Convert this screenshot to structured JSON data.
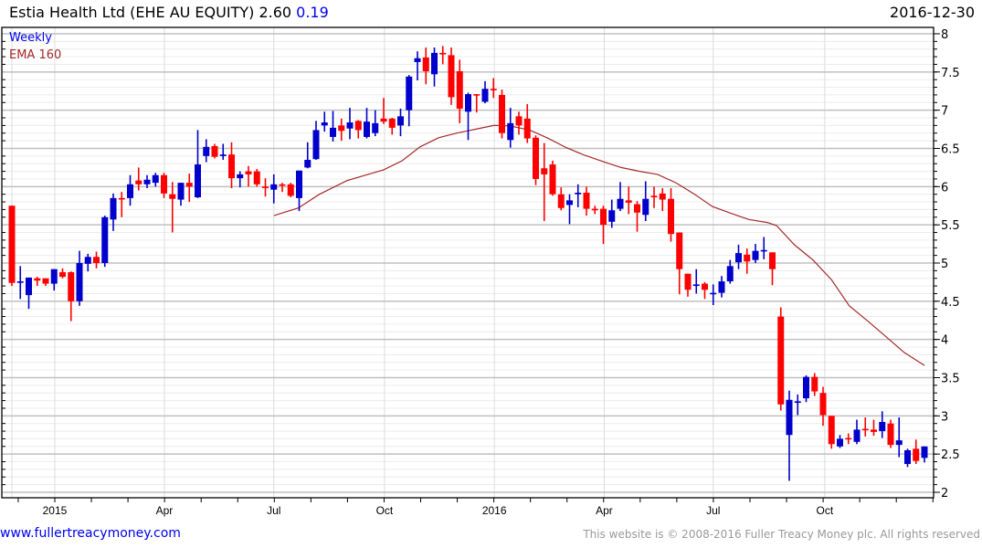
{
  "header": {
    "title": "Estia Health Ltd (EHE AU EQUITY) 2.60",
    "change": "0.19",
    "date": "2016-12-30"
  },
  "footer": {
    "site": "www.fullertreacymoney.com",
    "copyright": "This website is © 2008-2016 Fuller Treacy Money plc. All rights reserved"
  },
  "colors": {
    "up": "#0000cc",
    "down": "#ff0000",
    "ema": "#a52a2a",
    "legend_weekly": "#0000ee"
  },
  "chart_data": {
    "type": "candlestick",
    "title": "Estia Health Ltd (EHE AU EQUITY)",
    "legend": [
      "Weekly",
      "EMA 160"
    ],
    "legend_placement": "top-left",
    "ylim": [
      2,
      8
    ],
    "y_ticks": [
      "2",
      "2.5",
      "3",
      "3.5",
      "4",
      "4.5",
      "5",
      "5.5",
      "6",
      "6.5",
      "7",
      "7.5",
      "8"
    ],
    "x_labels": [
      {
        "label": "2015",
        "week": 6.08
      },
      {
        "label": "Apr",
        "week": 19.05
      },
      {
        "label": "Jul",
        "week": 32.0
      },
      {
        "label": "Oct",
        "week": 45.1
      },
      {
        "label": "2016",
        "week": 58.1
      },
      {
        "label": "Apr",
        "week": 71.1
      },
      {
        "label": "Jul",
        "week": 84.0
      },
      {
        "label": "Oct",
        "week": 97.2
      }
    ],
    "ohlc": [
      [
        5.75,
        5.75,
        4.7,
        4.74
      ],
      [
        4.75,
        4.96,
        4.53,
        4.76
      ],
      [
        4.58,
        4.81,
        4.4,
        4.81
      ],
      [
        4.8,
        4.82,
        4.7,
        4.77
      ],
      [
        4.8,
        4.8,
        4.7,
        4.73
      ],
      [
        4.73,
        4.92,
        4.64,
        4.92
      ],
      [
        4.88,
        4.93,
        4.8,
        4.82
      ],
      [
        4.88,
        4.89,
        4.24,
        4.5
      ],
      [
        4.5,
        5.16,
        4.44,
        5.0
      ],
      [
        4.99,
        5.12,
        4.89,
        5.08
      ],
      [
        5.08,
        5.15,
        4.93,
        5.0
      ],
      [
        5.0,
        5.62,
        4.95,
        5.6
      ],
      [
        5.57,
        5.91,
        5.42,
        5.85
      ],
      [
        5.85,
        5.93,
        5.6,
        5.84
      ],
      [
        5.85,
        6.15,
        5.75,
        6.03
      ],
      [
        6.08,
        6.25,
        5.95,
        6.03
      ],
      [
        6.03,
        6.15,
        5.98,
        6.09
      ],
      [
        6.05,
        6.18,
        6.0,
        6.15
      ],
      [
        6.15,
        6.18,
        5.85,
        5.91
      ],
      [
        5.9,
        6.06,
        5.4,
        5.84
      ],
      [
        5.83,
        6.05,
        5.75,
        6.05
      ],
      [
        6.05,
        6.17,
        5.8,
        6.0
      ],
      [
        5.86,
        6.74,
        5.85,
        6.29
      ],
      [
        6.4,
        6.62,
        6.32,
        6.52
      ],
      [
        6.53,
        6.56,
        6.37,
        6.39
      ],
      [
        6.4,
        6.56,
        6.35,
        6.42
      ],
      [
        6.42,
        6.58,
        5.98,
        6.11
      ],
      [
        6.11,
        6.2,
        5.99,
        6.16
      ],
      [
        6.2,
        6.27,
        6.0,
        6.16
      ],
      [
        6.2,
        6.23,
        6.0,
        6.03
      ],
      [
        6.0,
        6.11,
        5.87,
        5.99
      ],
      [
        5.96,
        6.16,
        5.78,
        6.03
      ],
      [
        6.03,
        6.05,
        5.93,
        6.02
      ],
      [
        6.03,
        6.05,
        5.86,
        5.88
      ],
      [
        5.85,
        6.21,
        5.68,
        6.21
      ],
      [
        6.25,
        6.58,
        6.24,
        6.35
      ],
      [
        6.36,
        6.86,
        6.35,
        6.74
      ],
      [
        6.8,
        6.98,
        6.72,
        6.84
      ],
      [
        6.65,
        6.99,
        6.59,
        6.77
      ],
      [
        6.8,
        6.89,
        6.6,
        6.73
      ],
      [
        6.76,
        7.03,
        6.62,
        6.84
      ],
      [
        6.86,
        6.87,
        6.63,
        6.74
      ],
      [
        6.65,
        7.03,
        6.63,
        6.85
      ],
      [
        6.7,
        7.0,
        6.66,
        6.83
      ],
      [
        6.89,
        7.16,
        6.82,
        6.85
      ],
      [
        6.89,
        6.9,
        6.68,
        6.77
      ],
      [
        6.8,
        7.02,
        6.66,
        6.92
      ],
      [
        7.0,
        7.46,
        6.79,
        7.44
      ],
      [
        7.63,
        7.77,
        7.39,
        7.68
      ],
      [
        7.69,
        7.82,
        7.34,
        7.51
      ],
      [
        7.47,
        7.82,
        7.31,
        7.75
      ],
      [
        7.75,
        7.84,
        7.6,
        7.73
      ],
      [
        7.72,
        7.82,
        7.07,
        7.17
      ],
      [
        7.51,
        7.66,
        6.83,
        7.02
      ],
      [
        6.98,
        7.23,
        6.61,
        7.21
      ],
      [
        7.21,
        7.21,
        6.97,
        7.2
      ],
      [
        7.11,
        7.38,
        7.09,
        7.28
      ],
      [
        7.28,
        7.42,
        7.16,
        7.26
      ],
      [
        7.2,
        7.27,
        6.63,
        6.7
      ],
      [
        6.61,
        7.03,
        6.51,
        6.83
      ],
      [
        6.92,
        6.98,
        6.68,
        6.8
      ],
      [
        6.89,
        7.08,
        6.57,
        6.63
      ],
      [
        6.64,
        6.67,
        6.02,
        6.1
      ],
      [
        6.24,
        6.57,
        5.55,
        6.16
      ],
      [
        6.29,
        6.34,
        5.88,
        5.9
      ],
      [
        5.9,
        5.99,
        5.69,
        5.72
      ],
      [
        5.76,
        5.9,
        5.51,
        5.82
      ],
      [
        5.9,
        6.03,
        5.73,
        5.92
      ],
      [
        5.92,
        6.0,
        5.62,
        5.71
      ],
      [
        5.71,
        5.75,
        5.64,
        5.69
      ],
      [
        5.71,
        5.75,
        5.25,
        5.5
      ],
      [
        5.54,
        5.83,
        5.46,
        5.69
      ],
      [
        5.71,
        6.06,
        5.68,
        5.84
      ],
      [
        5.82,
        6.0,
        5.64,
        5.79
      ],
      [
        5.77,
        5.81,
        5.41,
        5.66
      ],
      [
        5.63,
        6.07,
        5.55,
        5.84
      ],
      [
        5.88,
        6.0,
        5.72,
        5.86
      ],
      [
        5.91,
        5.98,
        5.68,
        5.83
      ],
      [
        5.84,
        5.98,
        5.28,
        5.38
      ],
      [
        5.4,
        5.4,
        4.59,
        4.92
      ],
      [
        4.86,
        4.86,
        4.56,
        4.65
      ],
      [
        4.71,
        4.92,
        4.6,
        4.72
      ],
      [
        4.73,
        4.75,
        4.53,
        4.65
      ],
      [
        4.6,
        4.72,
        4.45,
        4.61
      ],
      [
        4.61,
        4.83,
        4.55,
        4.76
      ],
      [
        4.76,
        5.04,
        4.73,
        4.96
      ],
      [
        5.01,
        5.24,
        4.92,
        5.13
      ],
      [
        5.11,
        5.19,
        4.86,
        5.02
      ],
      [
        5.04,
        5.25,
        5.0,
        5.16
      ],
      [
        5.16,
        5.34,
        5.05,
        5.17
      ],
      [
        5.14,
        5.14,
        4.71,
        4.92
      ],
      [
        4.3,
        4.42,
        3.07,
        3.15
      ],
      [
        2.75,
        3.33,
        2.15,
        3.21
      ],
      [
        3.18,
        3.28,
        3.01,
        3.19
      ],
      [
        3.23,
        3.53,
        3.18,
        3.51
      ],
      [
        3.51,
        3.56,
        3.26,
        3.32
      ],
      [
        3.3,
        3.38,
        2.87,
        3.01
      ],
      [
        3.0,
        3.0,
        2.57,
        2.63
      ],
      [
        2.6,
        2.75,
        2.58,
        2.7
      ],
      [
        2.71,
        2.77,
        2.63,
        2.7
      ],
      [
        2.66,
        2.95,
        2.63,
        2.82
      ],
      [
        2.83,
        2.98,
        2.73,
        2.82
      ],
      [
        2.82,
        2.95,
        2.74,
        2.79
      ],
      [
        2.8,
        3.06,
        2.71,
        2.92
      ],
      [
        2.9,
        2.95,
        2.58,
        2.62
      ],
      [
        2.62,
        2.98,
        2.46,
        2.68
      ],
      [
        2.37,
        2.57,
        2.33,
        2.55
      ],
      [
        2.57,
        2.69,
        2.37,
        2.41
      ],
      [
        2.45,
        2.6,
        2.39,
        2.6
      ]
    ],
    "ema": [
      [
        32.0,
        5.62
      ],
      [
        34.9,
        5.72
      ],
      [
        37.4,
        5.9
      ],
      [
        40.7,
        6.08
      ],
      [
        45.0,
        6.22
      ],
      [
        47.2,
        6.34
      ],
      [
        49.3,
        6.52
      ],
      [
        51.5,
        6.64
      ],
      [
        53.6,
        6.7
      ],
      [
        55.8,
        6.75
      ],
      [
        58.0,
        6.8
      ],
      [
        59.05,
        6.8
      ],
      [
        60.1,
        6.79
      ],
      [
        62.3,
        6.74
      ],
      [
        64.5,
        6.63
      ],
      [
        66.6,
        6.51
      ],
      [
        68.8,
        6.41
      ],
      [
        70.9,
        6.33
      ],
      [
        73.1,
        6.25
      ],
      [
        75.3,
        6.2
      ],
      [
        77.4,
        6.16
      ],
      [
        79.6,
        6.05
      ],
      [
        81.8,
        5.9
      ],
      [
        83.9,
        5.74
      ],
      [
        86.1,
        5.65
      ],
      [
        88.2,
        5.57
      ],
      [
        90.4,
        5.53
      ],
      [
        91.5,
        5.49
      ],
      [
        93.6,
        5.24
      ],
      [
        95.8,
        5.04
      ],
      [
        98.0,
        4.78
      ],
      [
        100.1,
        4.44
      ],
      [
        102.3,
        4.24
      ],
      [
        104.5,
        4.03
      ],
      [
        106.6,
        3.83
      ],
      [
        109.0,
        3.66
      ]
    ]
  }
}
